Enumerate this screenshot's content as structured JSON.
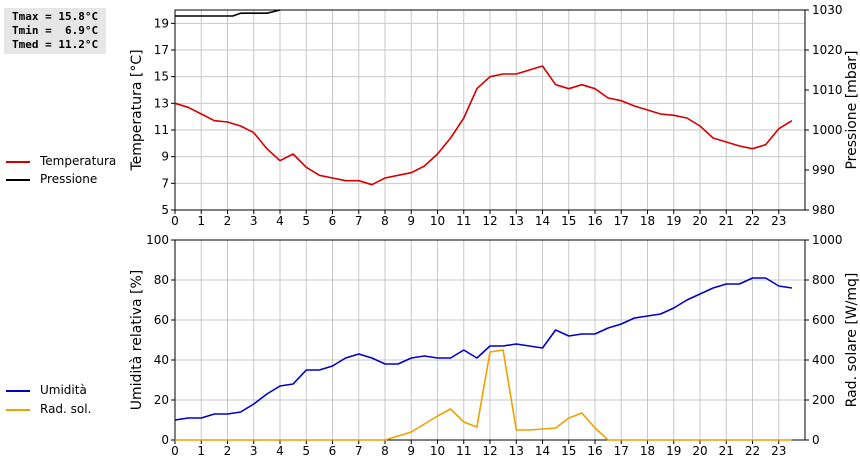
{
  "stats": {
    "tmax": "Tmax = 15.8°C",
    "tmin": "Tmin =  6.9°C",
    "tmed": "Tmed = 11.2°C"
  },
  "legend_top": [
    {
      "label": "Temperatura",
      "color": "#d40000"
    },
    {
      "label": "Pressione",
      "color": "#000000"
    }
  ],
  "legend_bottom": [
    {
      "label": "Umidità",
      "color": "#0000c8"
    },
    {
      "label": "Rad. sol.",
      "color": "#f0a000"
    }
  ],
  "chart_data": [
    {
      "type": "line",
      "xlim": [
        0,
        24
      ],
      "x_ticks": [
        "0",
        "1",
        "2",
        "3",
        "4",
        "5",
        "6",
        "7",
        "8",
        "9",
        "10",
        "11",
        "12",
        "13",
        "14",
        "15",
        "16",
        "17",
        "18",
        "19",
        "20",
        "21",
        "22",
        "23"
      ],
      "ylabel": "Temperatura [°C]",
      "ylim": [
        5,
        20
      ],
      "y_ticks": [
        "5",
        "7",
        "9",
        "11",
        "13",
        "15",
        "17",
        "19"
      ],
      "y2label": "Pressione [mbar]",
      "y2lim": [
        980,
        1030
      ],
      "y2_ticks": [
        "980",
        "990",
        "1000",
        "1010",
        "1020",
        "1030"
      ],
      "grid": true,
      "series": [
        {
          "name": "Temperatura",
          "axis": "left",
          "color": "#d40000",
          "x": [
            0,
            0.5,
            1,
            1.5,
            2,
            2.5,
            3,
            3.5,
            4,
            4.5,
            5,
            5.5,
            6,
            6.5,
            7,
            7.5,
            8,
            8.5,
            9,
            9.5,
            10,
            10.5,
            11,
            11.5,
            12,
            12.5,
            13,
            13.5,
            14,
            14.5,
            15,
            15.5,
            16,
            16.5,
            17,
            17.5,
            18,
            18.5,
            19,
            19.5,
            20,
            20.5,
            21,
            21.5,
            22,
            22.5,
            23,
            23.5
          ],
          "values": [
            13.0,
            12.7,
            12.2,
            11.7,
            11.6,
            11.3,
            10.8,
            9.6,
            8.7,
            9.2,
            8.2,
            7.6,
            7.4,
            7.2,
            7.2,
            6.9,
            7.4,
            7.6,
            7.8,
            8.3,
            9.2,
            10.4,
            11.9,
            14.1,
            15.0,
            15.2,
            15.2,
            15.5,
            15.8,
            14.4,
            14.1,
            14.4,
            14.1,
            13.4,
            13.2,
            12.8,
            12.5,
            12.2,
            12.1,
            11.9,
            11.3,
            10.4,
            10.1,
            9.8,
            9.6,
            9.9,
            11.1,
            11.7
          ]
        },
        {
          "name": "Pressione",
          "axis": "right",
          "color": "#000000",
          "x": [
            0,
            0.5,
            1,
            1.5,
            2,
            2.2,
            2.5,
            3,
            3.5,
            3.7,
            4.0
          ],
          "values": [
            1028.5,
            1028.5,
            1028.5,
            1028.5,
            1028.5,
            1028.5,
            1029.2,
            1029.2,
            1029.2,
            1029.5,
            1030.0
          ]
        }
      ]
    },
    {
      "type": "line",
      "xlim": [
        0,
        24
      ],
      "x_ticks": [
        "0",
        "1",
        "2",
        "3",
        "4",
        "5",
        "6",
        "7",
        "8",
        "9",
        "10",
        "11",
        "12",
        "13",
        "14",
        "15",
        "16",
        "17",
        "18",
        "19",
        "20",
        "21",
        "22",
        "23"
      ],
      "ylabel": "Umidità relativa [%]",
      "ylim": [
        0,
        100
      ],
      "y_ticks": [
        "0",
        "20",
        "40",
        "60",
        "80",
        "100"
      ],
      "y2label": "Rad. solare [W/mq]",
      "y2lim": [
        0,
        1000
      ],
      "y2_ticks": [
        "0",
        "200",
        "400",
        "600",
        "800",
        "1000"
      ],
      "grid": true,
      "series": [
        {
          "name": "Umidità",
          "axis": "left",
          "color": "#0000c8",
          "x": [
            0,
            0.5,
            1,
            1.5,
            2,
            2.5,
            3,
            3.5,
            4,
            4.5,
            5,
            5.5,
            6,
            6.5,
            7,
            7.5,
            8,
            8.5,
            9,
            9.5,
            10,
            10.5,
            11,
            11.5,
            12,
            12.5,
            13,
            13.5,
            14,
            14.5,
            15,
            15.5,
            16,
            16.5,
            17,
            17.5,
            18,
            18.5,
            19,
            19.5,
            20,
            20.5,
            21,
            21.5,
            22,
            22.5,
            23,
            23.5
          ],
          "values": [
            10,
            11,
            11,
            13,
            13,
            14,
            18,
            23,
            27,
            28,
            35,
            35,
            37,
            41,
            43,
            41,
            38,
            38,
            41,
            42,
            41,
            41,
            45,
            41,
            47,
            47,
            48,
            47,
            46,
            55,
            52,
            53,
            53,
            56,
            58,
            61,
            62,
            63,
            66,
            70,
            73,
            76,
            78,
            78,
            81,
            81,
            77,
            76
          ]
        },
        {
          "name": "Rad. sol.",
          "axis": "right",
          "color": "#f0a000",
          "x": [
            0,
            1,
            2,
            3,
            4,
            5,
            6,
            7,
            8,
            8.5,
            9,
            9.5,
            10,
            10.5,
            11,
            11.5,
            12,
            12.5,
            13,
            13.5,
            14,
            14.5,
            15,
            15.5,
            16,
            16.5,
            17,
            18,
            19,
            20,
            21,
            22,
            23,
            23.5
          ],
          "values": [
            0,
            0,
            0,
            0,
            0,
            0,
            0,
            0,
            0,
            20,
            40,
            80,
            120,
            155,
            90,
            65,
            440,
            450,
            50,
            50,
            55,
            60,
            110,
            135,
            60,
            0,
            0,
            0,
            0,
            0,
            0,
            0,
            0,
            0
          ]
        }
      ]
    }
  ]
}
